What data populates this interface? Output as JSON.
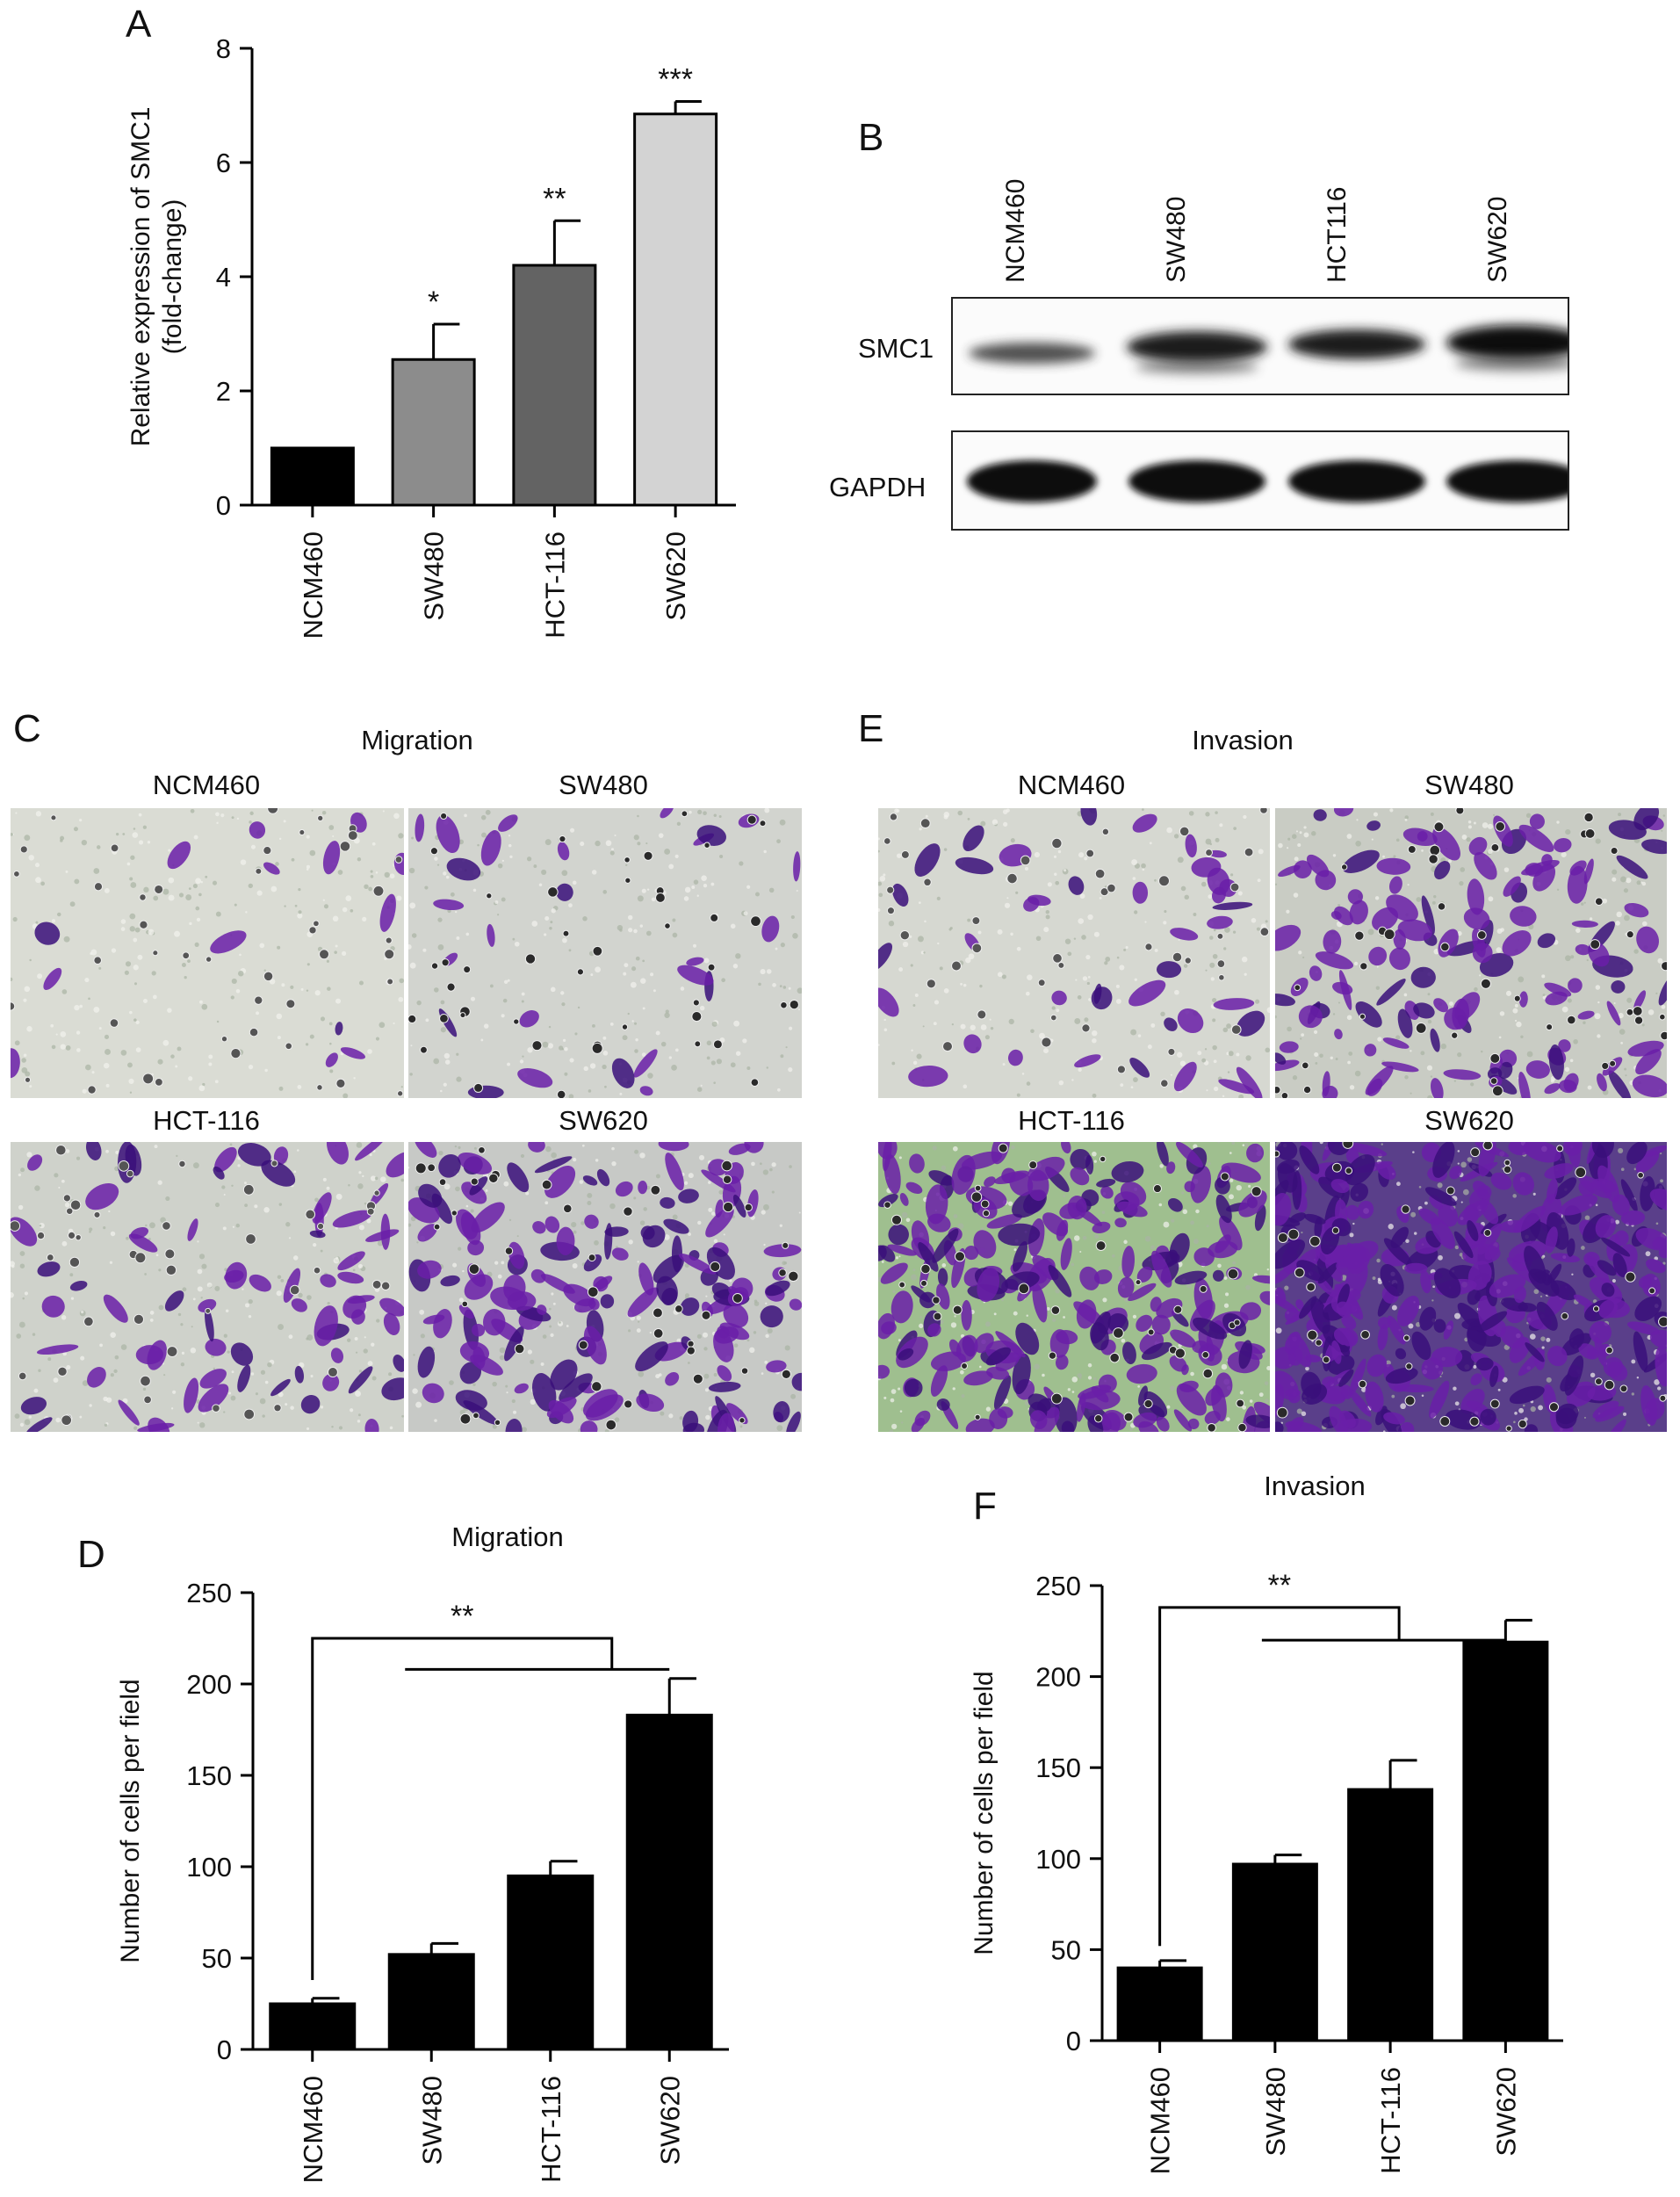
{
  "panels": {
    "A": {
      "letter": "A"
    },
    "B": {
      "letter": "B",
      "lanes": [
        "NCM460",
        "SW480",
        "HCT116",
        "SW620"
      ],
      "rows": [
        "SMC1",
        "GAPDH"
      ]
    },
    "C": {
      "letter": "C",
      "title": "Migration",
      "labels": [
        "NCM460",
        "SW480",
        "HCT-116",
        "SW620"
      ]
    },
    "D": {
      "letter": "D"
    },
    "E": {
      "letter": "E",
      "title": "Invasion",
      "labels": [
        "NCM460",
        "SW480",
        "HCT-116",
        "SW620"
      ]
    },
    "F": {
      "letter": "F"
    }
  },
  "colors": {
    "black_bar": "#000000",
    "gray1": "#8c8c8c",
    "gray2": "#636363",
    "gray3": "#d3d3d3",
    "stain": "#6a1fa8",
    "stain_dark": "#3a0f7a",
    "field": "#d9dcd6"
  },
  "chart_data": [
    {
      "id": "A",
      "type": "bar",
      "categories": [
        "NCM460",
        "SW480",
        "HCT-116",
        "SW620"
      ],
      "values": [
        1.0,
        2.55,
        4.2,
        6.85
      ],
      "errors": [
        0.0,
        0.62,
        0.78,
        0.22
      ],
      "significance": [
        "",
        "*",
        "**",
        "***"
      ],
      "bar_colors": [
        "#000000",
        "#8c8c8c",
        "#636363",
        "#d3d3d3"
      ],
      "ylabel": "Relative expression of SMC1 (fold-change)",
      "ylabel_lines": [
        "Relative expression of SMC1",
        "(fold-change)"
      ],
      "ylim": [
        0,
        8
      ],
      "yticks": [
        0,
        2,
        4,
        6,
        8
      ]
    },
    {
      "id": "D",
      "type": "bar",
      "title": "Migration",
      "categories": [
        "NCM460",
        "SW480",
        "HCT-116",
        "SW620"
      ],
      "values": [
        25,
        52,
        95,
        183
      ],
      "errors": [
        3,
        6,
        8,
        20
      ],
      "ylabel": "Number of cells per field",
      "ylim": [
        0,
        250
      ],
      "yticks": [
        0,
        50,
        100,
        150,
        200,
        250
      ],
      "annotation": "**"
    },
    {
      "id": "F",
      "type": "bar",
      "title": "Invasion",
      "categories": [
        "NCM460",
        "SW480",
        "HCT-116",
        "SW620"
      ],
      "values": [
        40,
        97,
        138,
        219
      ],
      "errors": [
        4,
        5,
        16,
        12
      ],
      "ylabel": "Number of cells per field",
      "ylim": [
        0,
        250
      ],
      "yticks": [
        0,
        50,
        100,
        150,
        200,
        250
      ],
      "annotation": "**"
    }
  ]
}
